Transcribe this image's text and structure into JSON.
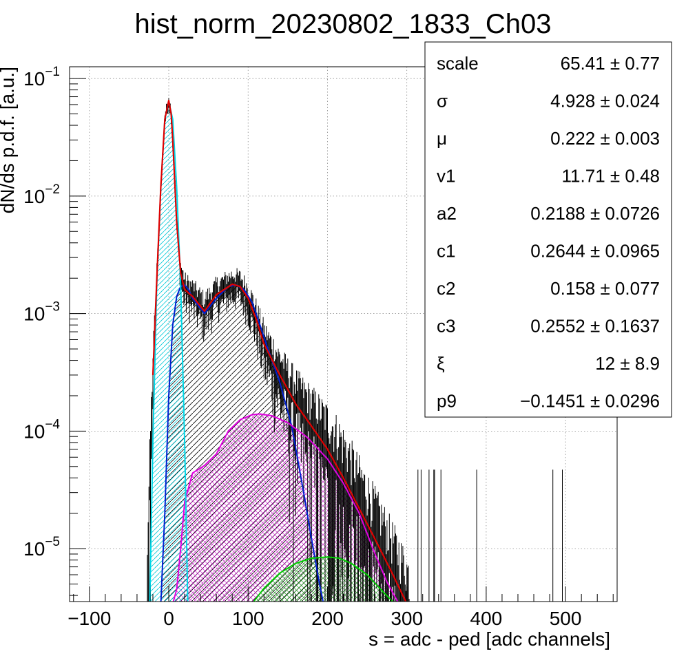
{
  "chart_data": {
    "type": "line",
    "title": "hist_norm_20230802_1833_Ch03",
    "xlabel": "s = adc - ped [adc channels]",
    "ylabel": "dN/ds p.d.f. [a.u.]",
    "xlim": [
      -125,
      565
    ],
    "ylim_log10": [
      -5.45,
      -0.9
    ],
    "y_scale": "log",
    "grid": true,
    "x_ticks": [
      {
        "value": -100,
        "label": "−100"
      },
      {
        "value": 0,
        "label": "0"
      },
      {
        "value": 100,
        "label": "100"
      },
      {
        "value": 200,
        "label": "200"
      },
      {
        "value": 300,
        "label": "300"
      },
      {
        "value": 400,
        "label": "400"
      },
      {
        "value": 500,
        "label": "500"
      }
    ],
    "y_ticks": [
      {
        "exp": -1,
        "base": "10",
        "sup": "−1"
      },
      {
        "exp": -2,
        "base": "10",
        "sup": "−2"
      },
      {
        "exp": -3,
        "base": "10",
        "sup": "−3"
      },
      {
        "exp": -4,
        "base": "10",
        "sup": "−4"
      },
      {
        "exp": -5,
        "base": "10",
        "sup": "−5"
      }
    ],
    "series": [
      {
        "id": "total",
        "color": "#e00000",
        "fill": "none",
        "x": [
          -20,
          -15,
          -10,
          -5,
          0,
          3,
          5,
          10,
          15,
          20,
          30,
          45,
          60,
          80,
          90,
          100,
          110,
          120,
          140,
          160,
          180,
          200,
          220,
          240,
          260,
          280,
          300
        ],
        "y": [
          0.0003,
          0.002,
          0.012,
          0.045,
          0.065,
          0.05,
          0.03,
          0.006,
          0.0022,
          0.0016,
          0.0014,
          0.00105,
          0.00145,
          0.00178,
          0.0017,
          0.00135,
          0.0009,
          0.00055,
          0.0003,
          0.00017,
          0.00011,
          7e-05,
          4e-05,
          2.2e-05,
          1.2e-05,
          6.5e-06,
          3.4e-06
        ]
      },
      {
        "id": "pedestal",
        "color": "#00d8e8",
        "fill": "#00d8e8",
        "x": [
          -24,
          -20,
          -15,
          -10,
          -5,
          0,
          5,
          10,
          15,
          20,
          24
        ],
        "y": [
          3.4e-06,
          8e-05,
          0.0018,
          0.012,
          0.045,
          0.064,
          0.045,
          0.012,
          0.0018,
          8e-05,
          3.4e-06
        ]
      },
      {
        "id": "single-pe",
        "color": "#0020d0",
        "fill": "#000000",
        "x": [
          -10,
          -5,
          0,
          5,
          10,
          15,
          20,
          25,
          30,
          45,
          60,
          75,
          85,
          95,
          105,
          115,
          125,
          140,
          155,
          170,
          180,
          190,
          195
        ],
        "y": [
          3.4e-06,
          2e-05,
          0.0002,
          0.0008,
          0.0014,
          0.0017,
          0.00175,
          0.0016,
          0.00135,
          0.001,
          0.00135,
          0.0017,
          0.00175,
          0.0016,
          0.00125,
          0.0008,
          0.0005,
          0.00026,
          0.00011,
          3e-05,
          1.2e-05,
          5e-06,
          3.4e-06
        ]
      },
      {
        "id": "two-pe",
        "color": "#e000e0",
        "fill": "#c000c0",
        "x": [
          5,
          10,
          15,
          20,
          30,
          45,
          60,
          75,
          90,
          105,
          115,
          130,
          150,
          175,
          200,
          220,
          240,
          260,
          275,
          290
        ],
        "y": [
          3.4e-06,
          4.5e-06,
          1e-05,
          2.5e-05,
          4.4e-05,
          5.1e-05,
          6.4e-05,
          0.0001,
          0.000125,
          0.000138,
          0.00014,
          0.000135,
          0.000118,
          8.8e-05,
          5.8e-05,
          3.6e-05,
          2e-05,
          9e-06,
          5.2e-06,
          3.4e-06
        ]
      },
      {
        "id": "three-pe",
        "color": "#00d000",
        "fill": "#00c000",
        "x": [
          105,
          120,
          140,
          160,
          180,
          200,
          215,
          230,
          250,
          270,
          285
        ],
        "y": [
          3.4e-06,
          4.6e-06,
          6.2e-06,
          7.5e-06,
          8.3e-06,
          8.5e-06,
          8.3e-06,
          7.5e-06,
          6e-06,
          4.3e-06,
          3.4e-06
        ]
      }
    ],
    "stats": [
      {
        "name": "scale",
        "value": "65.41 ± 0.77"
      },
      {
        "name": "σ",
        "value": "4.928 ± 0.024"
      },
      {
        "name": "μ",
        "value": "0.222 ± 0.003"
      },
      {
        "name": "v1",
        "value": "11.71 ± 0.48"
      },
      {
        "name": "a2",
        "value": "0.2188 ± 0.0726"
      },
      {
        "name": "c1",
        "value": "0.2644 ± 0.0965"
      },
      {
        "name": "c2",
        "value": "0.158 ± 0.077"
      },
      {
        "name": "c3",
        "value": "0.2552 ± 0.1637"
      },
      {
        "name": "ξ",
        "value": "12 ± 8.9"
      },
      {
        "name": "p9",
        "value": "−0.1451 ± 0.0296"
      }
    ]
  }
}
